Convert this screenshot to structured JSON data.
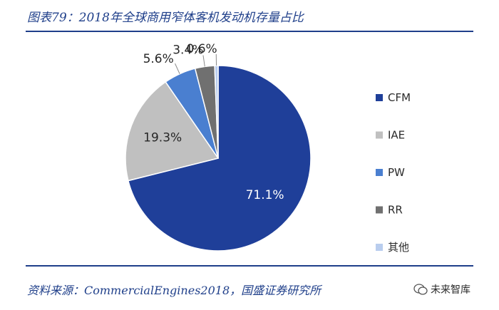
{
  "header": {
    "title": "图表79：2018年全球商用窄体客机发动机存量占比"
  },
  "footer": {
    "source": "资料来源：CommercialEngines2018，国盛证券研究所"
  },
  "watermark": {
    "text": "未来智库"
  },
  "chart_data": {
    "type": "pie",
    "title": "",
    "start_angle_deg": 0,
    "direction": "clockwise",
    "legend_position": "right",
    "slices": [
      {
        "name": "CFM",
        "value": 71.1,
        "label": "71.1%",
        "color": "#1f3f99",
        "label_color": "#ffffff"
      },
      {
        "name": "IAE",
        "value": 19.3,
        "label": "19.3%",
        "color": "#c0c0c0",
        "label_color": "#262626"
      },
      {
        "name": "PW",
        "value": 5.6,
        "label": "5.6%",
        "color": "#4a7fd0",
        "label_color": "#262626"
      },
      {
        "name": "RR",
        "value": 3.4,
        "label": "3.4%",
        "color": "#707070",
        "label_color": "#262626"
      },
      {
        "name": "其他",
        "value": 0.6,
        "label": "0.6%",
        "color": "#b9cdee",
        "label_color": "#262626"
      }
    ]
  }
}
